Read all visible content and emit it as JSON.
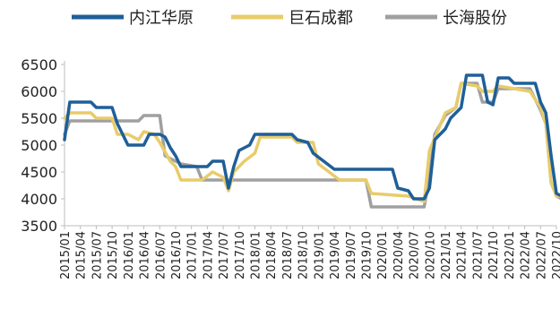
{
  "chart_data": {
    "type": "line",
    "title": "",
    "xlabel": "",
    "ylabel": "",
    "ylim": [
      3500,
      6500
    ],
    "yticks": [
      "3500",
      "4000",
      "4500",
      "5000",
      "5500",
      "6000",
      "6500"
    ],
    "xticks": [
      "2015/01",
      "2015/04",
      "2015/07",
      "2015/10",
      "2016/01",
      "2016/04",
      "2016/07",
      "2016/10",
      "2017/01",
      "2017/04",
      "2017/07",
      "2017/10",
      "2018/01",
      "2018/04",
      "2018/07",
      "2018/10",
      "2019/01",
      "2019/04",
      "2019/07",
      "2019/10",
      "2020/01",
      "2020/04",
      "2020/07",
      "2020/10",
      "2021/01",
      "2021/04",
      "2021/07",
      "2021/10",
      "2022/01",
      "2022/04",
      "2022/07",
      "2022/10"
    ],
    "grid": false,
    "legend": "top",
    "series": [
      {
        "name": "内江华原",
        "color": "#1f5f99",
        "points": [
          [
            "2015/01",
            5100
          ],
          [
            "2015/02",
            5800
          ],
          [
            "2015/06",
            5800
          ],
          [
            "2015/07",
            5700
          ],
          [
            "2015/10",
            5700
          ],
          [
            "2015/11",
            5400
          ],
          [
            "2016/01",
            5000
          ],
          [
            "2016/04",
            5000
          ],
          [
            "2016/05",
            5200
          ],
          [
            "2016/07",
            5200
          ],
          [
            "2016/08",
            5150
          ],
          [
            "2016/09",
            4950
          ],
          [
            "2016/10",
            4800
          ],
          [
            "2016/11",
            4600
          ],
          [
            "2017/04",
            4600
          ],
          [
            "2017/05",
            4700
          ],
          [
            "2017/07",
            4700
          ],
          [
            "2017/08",
            4200
          ],
          [
            "2017/09",
            4600
          ],
          [
            "2017/10",
            4900
          ],
          [
            "2017/12",
            5000
          ],
          [
            "2018/01",
            5200
          ],
          [
            "2018/08",
            5200
          ],
          [
            "2018/09",
            5100
          ],
          [
            "2018/11",
            5050
          ],
          [
            "2018/12",
            4850
          ],
          [
            "2019/02",
            4700
          ],
          [
            "2019/04",
            4550
          ],
          [
            "2020/03",
            4550
          ],
          [
            "2020/04",
            4200
          ],
          [
            "2020/06",
            4150
          ],
          [
            "2020/07",
            4000
          ],
          [
            "2020/09",
            4000
          ],
          [
            "2020/10",
            4200
          ],
          [
            "2020/11",
            5100
          ],
          [
            "2021/01",
            5300
          ],
          [
            "2021/02",
            5500
          ],
          [
            "2021/04",
            5700
          ],
          [
            "2021/05",
            6300
          ],
          [
            "2021/08",
            6300
          ],
          [
            "2021/09",
            5800
          ],
          [
            "2021/10",
            5750
          ],
          [
            "2021/11",
            6250
          ],
          [
            "2022/01",
            6250
          ],
          [
            "2022/02",
            6150
          ],
          [
            "2022/06",
            6150
          ],
          [
            "2022/07",
            5800
          ],
          [
            "2022/08",
            5600
          ],
          [
            "2022/09",
            4800
          ],
          [
            "2022/10",
            4100
          ],
          [
            "2022/11",
            4050
          ]
        ]
      },
      {
        "name": "巨石成都",
        "color": "#e8cc6a",
        "points": [
          [
            "2015/01",
            5500
          ],
          [
            "2015/02",
            5600
          ],
          [
            "2015/06",
            5600
          ],
          [
            "2015/07",
            5500
          ],
          [
            "2015/10",
            5500
          ],
          [
            "2015/11",
            5200
          ],
          [
            "2016/01",
            5200
          ],
          [
            "2016/03",
            5100
          ],
          [
            "2016/04",
            5250
          ],
          [
            "2016/06",
            5200
          ],
          [
            "2016/07",
            5050
          ],
          [
            "2016/09",
            4700
          ],
          [
            "2016/10",
            4600
          ],
          [
            "2016/11",
            4350
          ],
          [
            "2017/03",
            4350
          ],
          [
            "2017/05",
            4500
          ],
          [
            "2017/07",
            4400
          ],
          [
            "2017/08",
            4150
          ],
          [
            "2017/09",
            4500
          ],
          [
            "2017/11",
            4700
          ],
          [
            "2018/01",
            4850
          ],
          [
            "2018/02",
            5150
          ],
          [
            "2018/08",
            5150
          ],
          [
            "2018/09",
            5050
          ],
          [
            "2018/12",
            5050
          ],
          [
            "2019/01",
            4650
          ],
          [
            "2019/03",
            4500
          ],
          [
            "2019/05",
            4350
          ],
          [
            "2019/10",
            4350
          ],
          [
            "2019/11",
            4100
          ],
          [
            "2020/06",
            4050
          ],
          [
            "2020/09",
            3950
          ],
          [
            "2020/10",
            4900
          ],
          [
            "2021/01",
            5600
          ],
          [
            "2021/03",
            5700
          ],
          [
            "2021/04",
            6150
          ],
          [
            "2021/07",
            6100
          ],
          [
            "2021/08",
            6000
          ],
          [
            "2021/10",
            6000
          ],
          [
            "2021/11",
            6100
          ],
          [
            "2022/05",
            6000
          ],
          [
            "2022/07",
            5700
          ],
          [
            "2022/08",
            5400
          ],
          [
            "2022/09",
            4300
          ],
          [
            "2022/10",
            4050
          ],
          [
            "2022/11",
            4050
          ]
        ]
      },
      {
        "name": "长海股份",
        "color": "#a0a0a0",
        "points": [
          [
            "2015/01",
            5200
          ],
          [
            "2015/02",
            5450
          ],
          [
            "2016/01",
            5450
          ],
          [
            "2016/03",
            5450
          ],
          [
            "2016/04",
            5550
          ],
          [
            "2016/07",
            5550
          ],
          [
            "2016/08",
            4800
          ],
          [
            "2016/11",
            4650
          ],
          [
            "2017/02",
            4600
          ],
          [
            "2017/03",
            4350
          ],
          [
            "2018/03",
            4350
          ],
          [
            "2019/03",
            4350
          ],
          [
            "2019/10",
            4350
          ],
          [
            "2019/11",
            3850
          ],
          [
            "2020/09",
            3850
          ],
          [
            "2020/10",
            4400
          ],
          [
            "2020/11",
            5200
          ],
          [
            "2021/01",
            5550
          ],
          [
            "2021/03",
            5700
          ],
          [
            "2021/04",
            6150
          ],
          [
            "2021/07",
            6150
          ],
          [
            "2021/08",
            5800
          ],
          [
            "2021/10",
            5800
          ],
          [
            "2021/11",
            6050
          ],
          [
            "2022/05",
            6050
          ],
          [
            "2022/07",
            5650
          ],
          [
            "2022/08",
            5400
          ],
          [
            "2022/09",
            4300
          ],
          [
            "2022/10",
            4050
          ],
          [
            "2022/11",
            4000
          ]
        ]
      }
    ]
  }
}
